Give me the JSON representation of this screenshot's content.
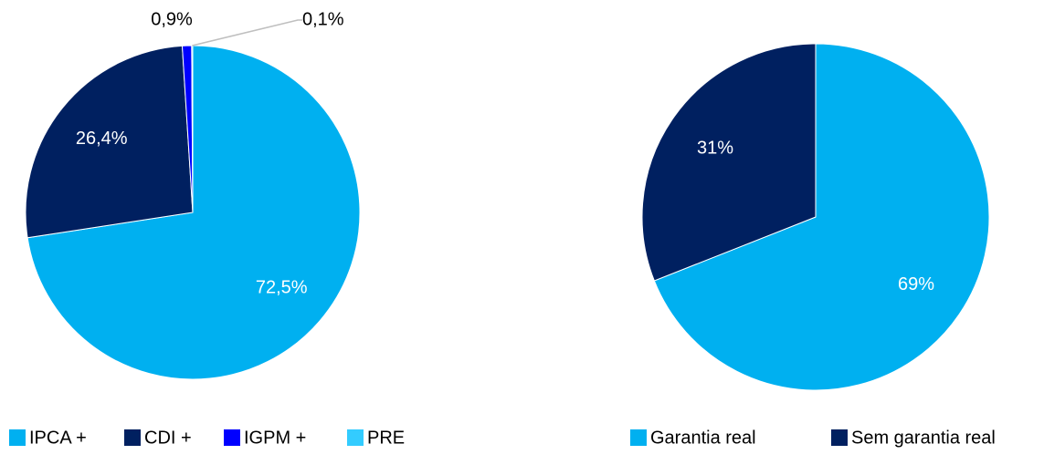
{
  "chart_data": [
    {
      "type": "pie",
      "categories": [
        "IPCA +",
        "CDI +",
        "IGPM +",
        "PRE"
      ],
      "values": [
        72.5,
        26.4,
        0.9,
        0.1
      ],
      "value_labels": [
        "72,5%",
        "26,4%",
        "0,9%",
        "0,1%"
      ],
      "colors": [
        "#00b0f0",
        "#002060",
        "#0000ff",
        "#33ccff"
      ],
      "legend": "bottom"
    },
    {
      "type": "pie",
      "categories": [
        "Garantia real",
        "Sem garantia real"
      ],
      "values": [
        69,
        31
      ],
      "value_labels": [
        "69%",
        "31%"
      ],
      "colors": [
        "#00b0f0",
        "#002060"
      ],
      "legend": "bottom"
    }
  ]
}
